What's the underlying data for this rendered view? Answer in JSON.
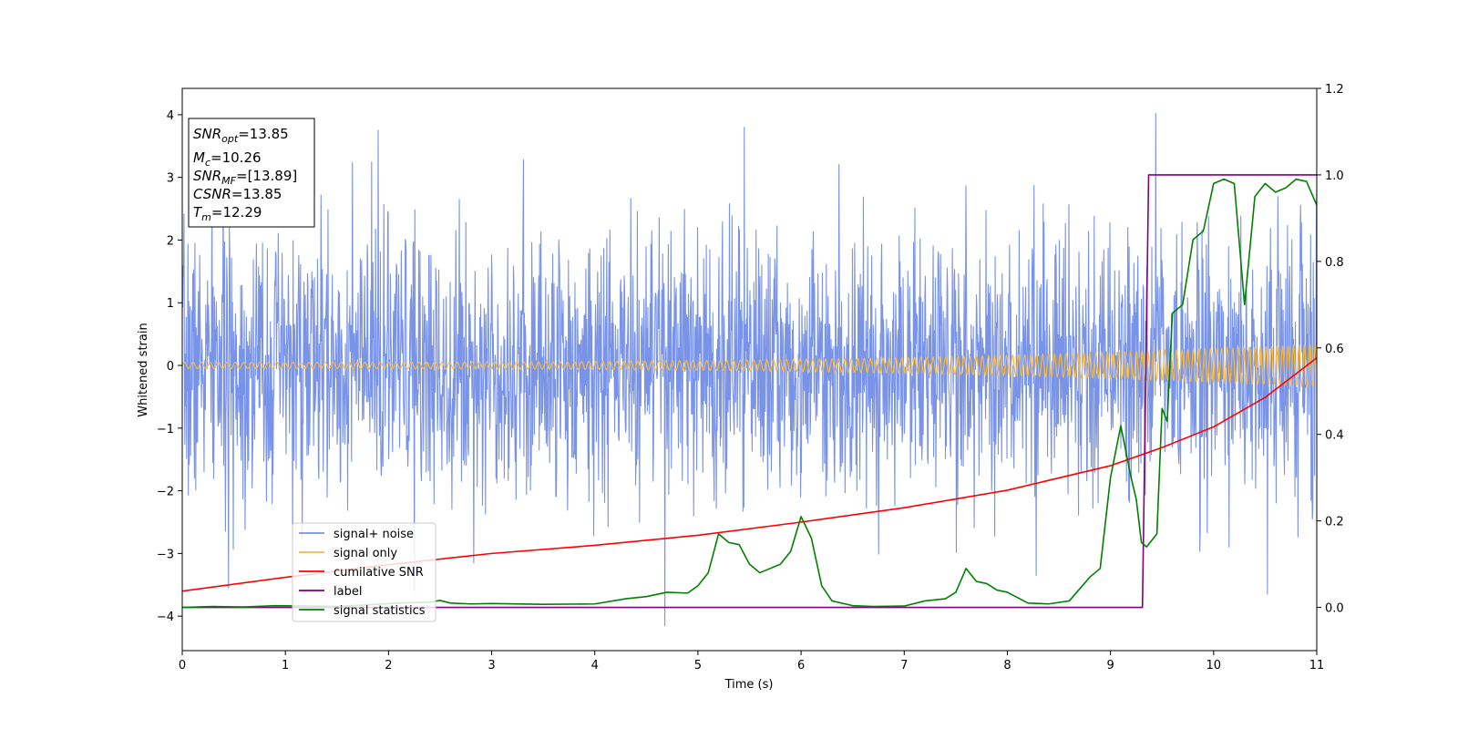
{
  "chart_data": {
    "type": "line",
    "xlabel": "Time (s)",
    "ylabel": "Whitened strain",
    "xlim": [
      0,
      11
    ],
    "ylim": [
      -4.55,
      4.42
    ],
    "y2lim": [
      -0.1,
      1.2
    ],
    "x_ticks": [
      0,
      1,
      2,
      3,
      4,
      5,
      6,
      7,
      8,
      9,
      10,
      11
    ],
    "y_ticks": [
      -4,
      -3,
      -2,
      -1,
      0,
      1,
      2,
      3,
      4
    ],
    "y_tick_labels": [
      "−4",
      "−3",
      "−2",
      "−1",
      "0",
      "1",
      "2",
      "3",
      "4"
    ],
    "y2_ticks": [
      0.0,
      0.2,
      0.4,
      0.6,
      0.8,
      1.0,
      1.2
    ],
    "y2_tick_labels": [
      "0.0",
      "0.2",
      "0.4",
      "0.6",
      "0.8",
      "1.0",
      "1.2"
    ],
    "grid": false,
    "legend_position": "lower-left",
    "info_box": {
      "lines": [
        {
          "sym": "SNR",
          "sub": "opt",
          "val": "=13.85"
        },
        {
          "sym": "M",
          "sub": "c",
          "val": "=10.26"
        },
        {
          "sym": "SNR",
          "sub": "MF",
          "val": "=[13.89]"
        },
        {
          "sym": "CSNR",
          "sub": "",
          "val": "=13.85"
        },
        {
          "sym": "T",
          "sub": "m",
          "val": "=12.29"
        }
      ]
    },
    "series": [
      {
        "name": "signal+ noise",
        "axis": "left",
        "color": "#7893e7",
        "kind": "noise",
        "std": 1.05,
        "seed": 7,
        "samples": 2600,
        "peaks": [
          [
            1.9,
            3.75
          ],
          [
            2.25,
            -3.6
          ],
          [
            4.68,
            -4.15
          ],
          [
            5.45,
            3.8
          ],
          [
            9.44,
            4.02
          ],
          [
            10.52,
            -3.65
          ],
          [
            0.45,
            -3.55
          ]
        ]
      },
      {
        "name": "signal only",
        "axis": "left",
        "color": "#f5b942",
        "kind": "chirp",
        "f0": 12.0,
        "f1": 19.0,
        "a0": 0.05,
        "a1": 0.34
      },
      {
        "name": "cumilative SNR",
        "axis": "left",
        "color": "#ff0000",
        "x": [
          0,
          1,
          2,
          3,
          4,
          5,
          6,
          7,
          8,
          9,
          9.5,
          10,
          10.5,
          11
        ],
        "y": [
          -3.6,
          -3.38,
          -3.18,
          -3.0,
          -2.87,
          -2.71,
          -2.5,
          -2.27,
          -1.99,
          -1.6,
          -1.31,
          -0.98,
          -0.51,
          0.12
        ]
      },
      {
        "name": "label",
        "axis": "right",
        "color": "#800080",
        "x": [
          0,
          9.31,
          9.37,
          11
        ],
        "y": [
          0,
          0,
          1.0,
          1.0
        ]
      },
      {
        "name": "signal statistics",
        "axis": "right",
        "color": "#008000",
        "x": [
          0,
          0.3,
          0.6,
          0.9,
          1.2,
          1.5,
          1.8,
          2.1,
          2.4,
          2.5,
          2.6,
          2.8,
          3.0,
          3.5,
          4.0,
          4.3,
          4.5,
          4.7,
          4.9,
          5.0,
          5.1,
          5.2,
          5.3,
          5.4,
          5.5,
          5.6,
          5.7,
          5.8,
          5.9,
          6.0,
          6.1,
          6.2,
          6.3,
          6.5,
          6.7,
          7.0,
          7.2,
          7.4,
          7.5,
          7.6,
          7.7,
          7.8,
          7.9,
          8.0,
          8.2,
          8.4,
          8.6,
          8.8,
          8.9,
          9.0,
          9.1,
          9.2,
          9.25,
          9.3,
          9.35,
          9.45,
          9.5,
          9.55,
          9.6,
          9.7,
          9.8,
          9.9,
          10.0,
          10.1,
          10.2,
          10.3,
          10.4,
          10.5,
          10.6,
          10.7,
          10.8,
          10.9,
          11.0
        ],
        "y": [
          0.0,
          0.002,
          0.001,
          0.004,
          0.003,
          0.002,
          0.006,
          0.01,
          0.012,
          0.016,
          0.01,
          0.008,
          0.009,
          0.007,
          0.008,
          0.02,
          0.025,
          0.035,
          0.033,
          0.05,
          0.08,
          0.17,
          0.15,
          0.145,
          0.1,
          0.08,
          0.09,
          0.1,
          0.13,
          0.21,
          0.16,
          0.05,
          0.015,
          0.004,
          0.002,
          0.003,
          0.015,
          0.02,
          0.035,
          0.09,
          0.06,
          0.055,
          0.04,
          0.035,
          0.01,
          0.008,
          0.015,
          0.07,
          0.09,
          0.3,
          0.42,
          0.3,
          0.25,
          0.15,
          0.14,
          0.17,
          0.46,
          0.43,
          0.68,
          0.7,
          0.85,
          0.87,
          0.98,
          0.99,
          0.98,
          0.7,
          0.95,
          0.98,
          0.96,
          0.97,
          0.99,
          0.985,
          0.93
        ]
      }
    ]
  }
}
